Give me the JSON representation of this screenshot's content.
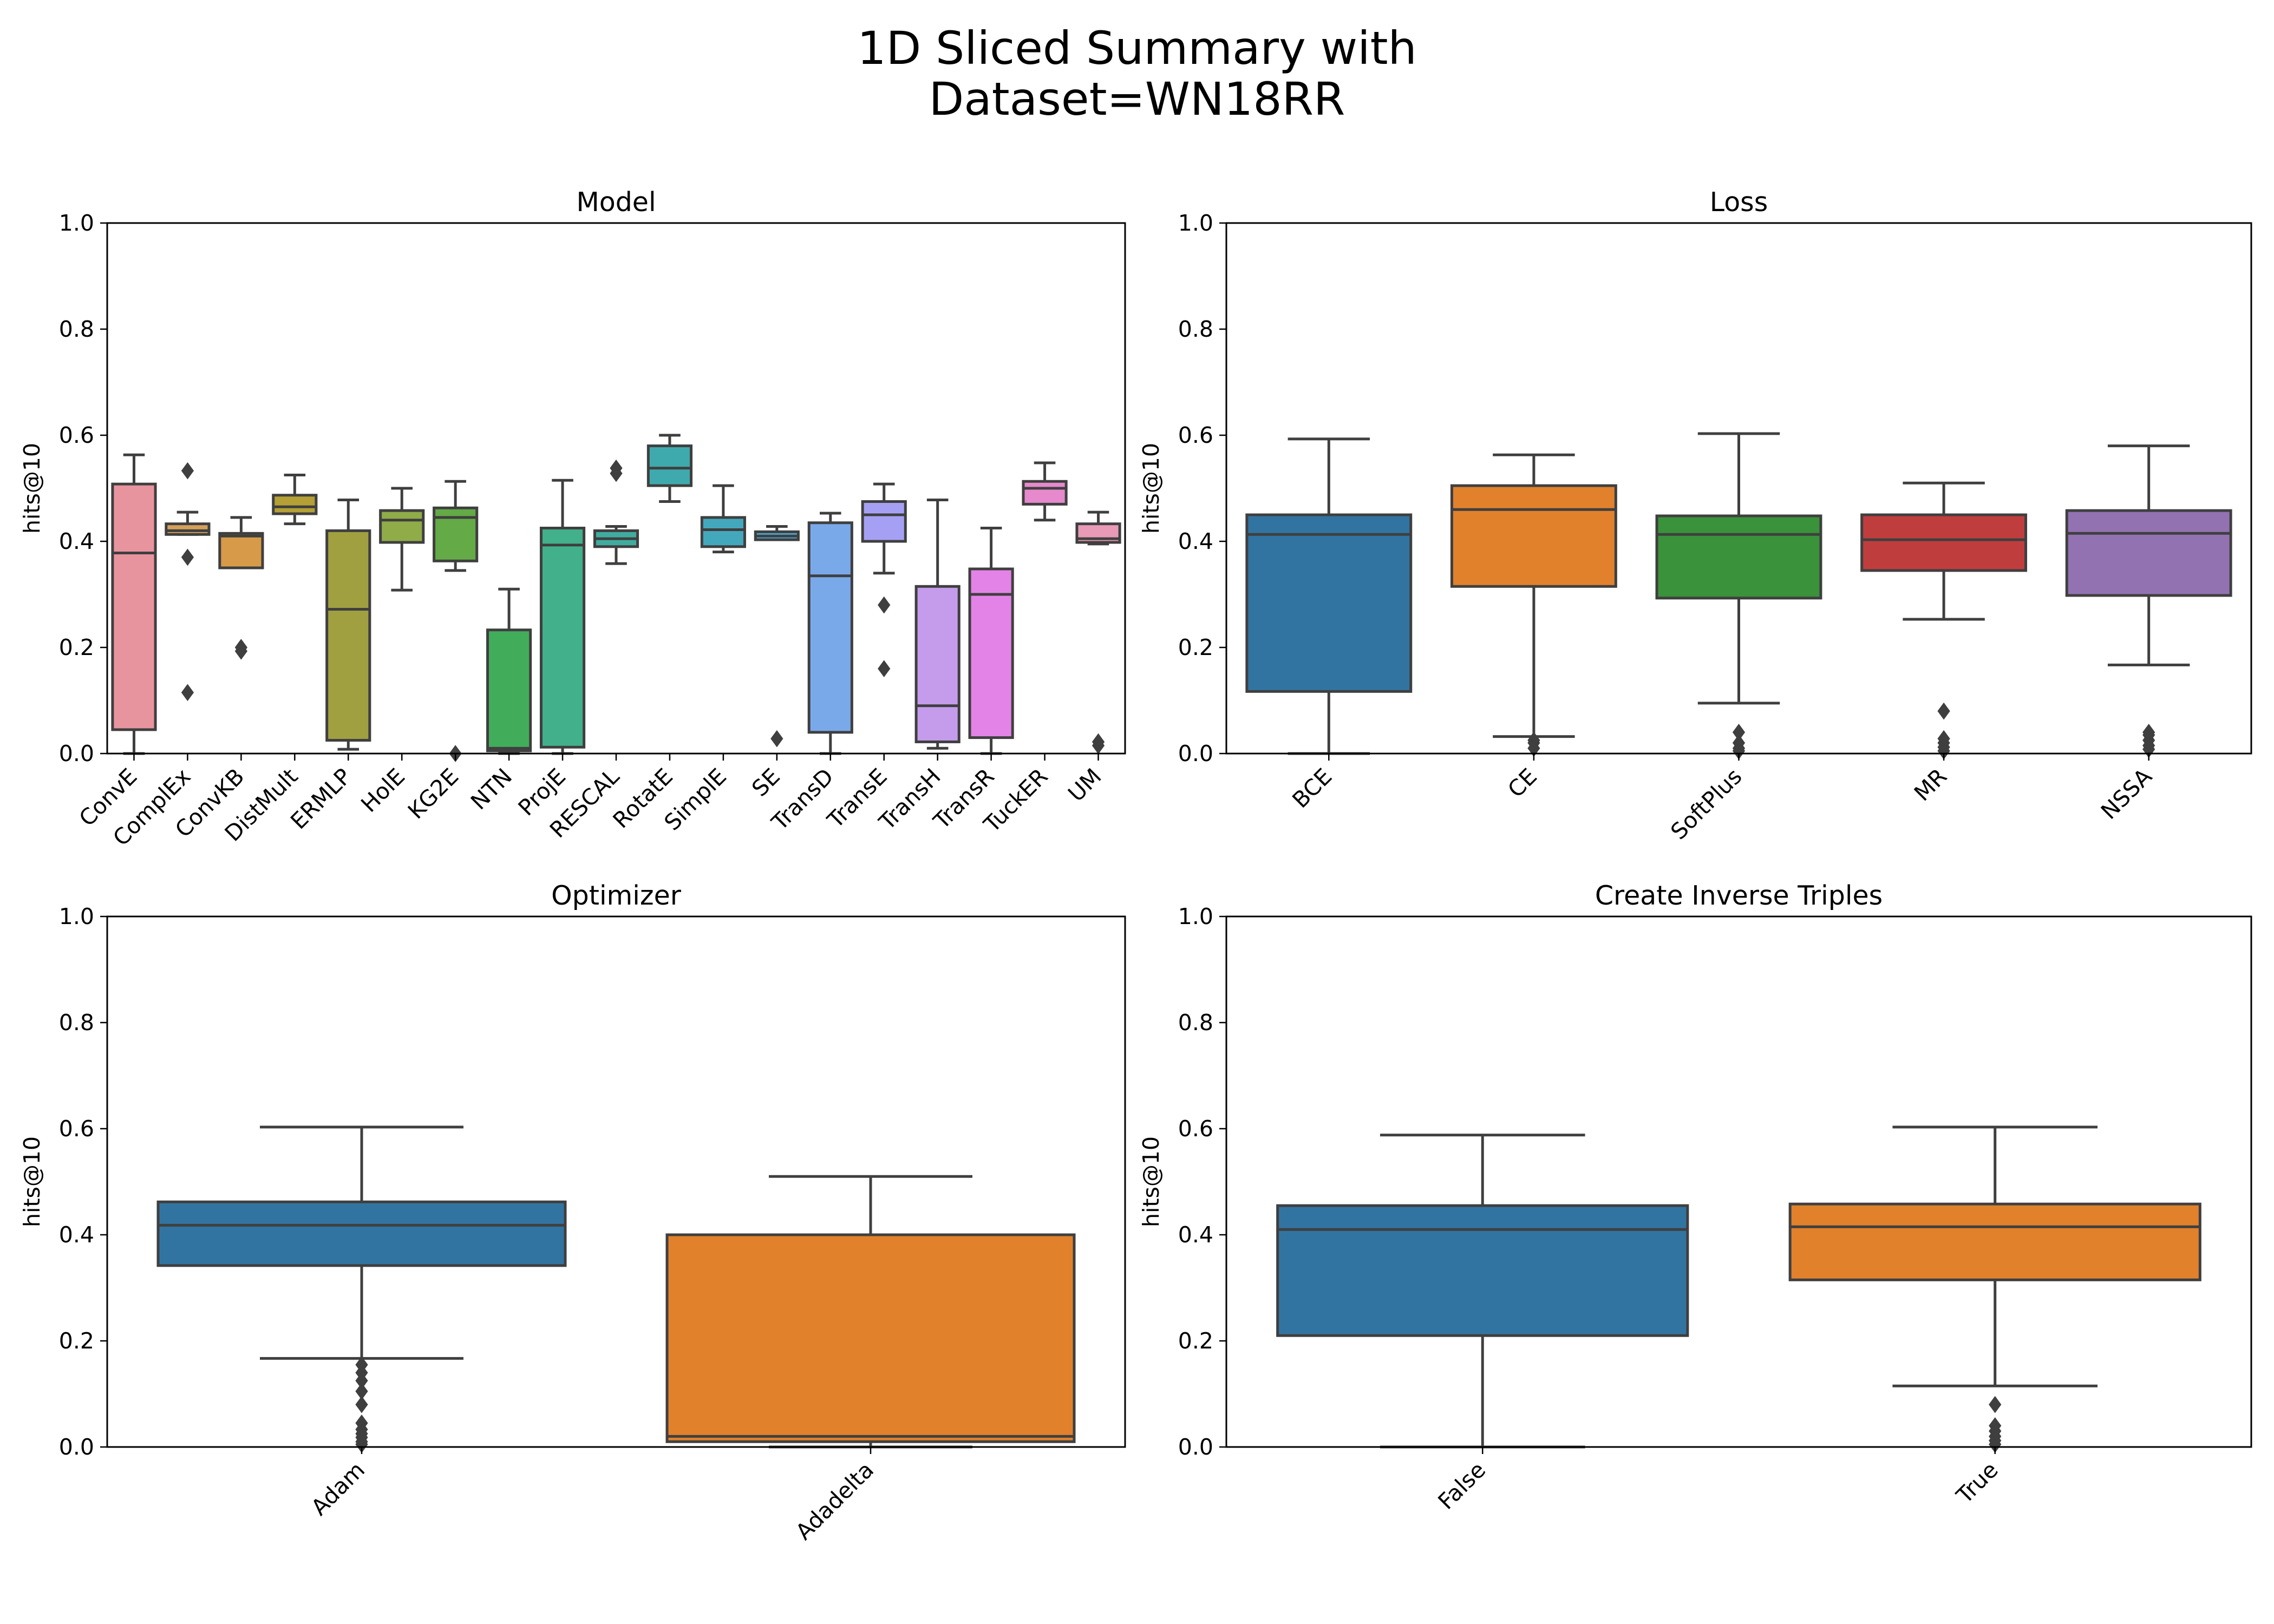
{
  "title_line1": "1D Sliced Summary with",
  "title_line2": "Dataset=WN18RR",
  "chart_data": [
    {
      "type": "box",
      "title": "Model",
      "ylabel": "hits@10",
      "ylim": [
        0,
        1
      ],
      "yticks": [
        "0.0",
        "0.2",
        "0.4",
        "0.6",
        "0.8",
        "1.0"
      ],
      "categories": [
        "ConvE",
        "ComplEx",
        "ConvKB",
        "DistMult",
        "ERMLP",
        "HolE",
        "KG2E",
        "NTN",
        "ProjE",
        "RESCAL",
        "RotatE",
        "SimplE",
        "SE",
        "TransD",
        "TransE",
        "TransH",
        "TransR",
        "TuckER",
        "UM"
      ],
      "colors": [
        "#e8949f",
        "#d6a05b",
        "#d79a48",
        "#b4a035",
        "#a0a040",
        "#8fac48",
        "#64aa46",
        "#41ad5b",
        "#42b08a",
        "#40ac9f",
        "#3faaad",
        "#44a8bd",
        "#4aa6cf",
        "#7aa9ea",
        "#a6a0f4",
        "#c59ceb",
        "#e383e7",
        "#e689cd",
        "#e99ab7"
      ],
      "boxes": [
        {
          "whislo": 0.0,
          "q1": 0.045,
          "med": 0.378,
          "q3": 0.508,
          "whishi": 0.563,
          "fliers": []
        },
        {
          "whislo": 0.413,
          "q1": 0.413,
          "med": 0.42,
          "q3": 0.433,
          "whishi": 0.455,
          "fliers": [
            0.115,
            0.37,
            0.533
          ]
        },
        {
          "whislo": 0.35,
          "q1": 0.35,
          "med": 0.41,
          "q3": 0.415,
          "whishi": 0.445,
          "fliers": [
            0.193,
            0.2
          ]
        },
        {
          "whislo": 0.433,
          "q1": 0.452,
          "med": 0.465,
          "q3": 0.487,
          "whishi": 0.525,
          "fliers": []
        },
        {
          "whislo": 0.008,
          "q1": 0.025,
          "med": 0.272,
          "q3": 0.42,
          "whishi": 0.478,
          "fliers": []
        },
        {
          "whislo": 0.308,
          "q1": 0.398,
          "med": 0.44,
          "q3": 0.458,
          "whishi": 0.5,
          "fliers": []
        },
        {
          "whislo": 0.345,
          "q1": 0.363,
          "med": 0.445,
          "q3": 0.463,
          "whishi": 0.513,
          "fliers": [
            0.0
          ]
        },
        {
          "whislo": 0.0,
          "q1": 0.005,
          "med": 0.01,
          "q3": 0.233,
          "whishi": 0.31,
          "fliers": []
        },
        {
          "whislo": 0.0,
          "q1": 0.012,
          "med": 0.393,
          "q3": 0.425,
          "whishi": 0.515,
          "fliers": []
        },
        {
          "whislo": 0.358,
          "q1": 0.39,
          "med": 0.405,
          "q3": 0.42,
          "whishi": 0.428,
          "fliers": [
            0.528,
            0.538
          ]
        },
        {
          "whislo": 0.475,
          "q1": 0.505,
          "med": 0.538,
          "q3": 0.58,
          "whishi": 0.6,
          "fliers": []
        },
        {
          "whislo": 0.38,
          "q1": 0.39,
          "med": 0.422,
          "q3": 0.445,
          "whishi": 0.505,
          "fliers": []
        },
        {
          "whislo": 0.403,
          "q1": 0.403,
          "med": 0.41,
          "q3": 0.418,
          "whishi": 0.428,
          "fliers": [
            0.028
          ]
        },
        {
          "whislo": 0.0,
          "q1": 0.04,
          "med": 0.335,
          "q3": 0.435,
          "whishi": 0.453,
          "fliers": []
        },
        {
          "whislo": 0.34,
          "q1": 0.4,
          "med": 0.45,
          "q3": 0.475,
          "whishi": 0.508,
          "fliers": [
            0.16,
            0.28
          ]
        },
        {
          "whislo": 0.01,
          "q1": 0.022,
          "med": 0.09,
          "q3": 0.315,
          "whishi": 0.478,
          "fliers": []
        },
        {
          "whislo": 0.0,
          "q1": 0.03,
          "med": 0.3,
          "q3": 0.348,
          "whishi": 0.425,
          "fliers": []
        },
        {
          "whislo": 0.44,
          "q1": 0.47,
          "med": 0.5,
          "q3": 0.513,
          "whishi": 0.548,
          "fliers": []
        },
        {
          "whislo": 0.395,
          "q1": 0.398,
          "med": 0.405,
          "q3": 0.433,
          "whishi": 0.455,
          "fliers": [
            0.015,
            0.022
          ]
        }
      ]
    },
    {
      "type": "box",
      "title": "Loss",
      "ylabel": "hits@10",
      "ylim": [
        0,
        1
      ],
      "yticks": [
        "0.0",
        "0.2",
        "0.4",
        "0.6",
        "0.8",
        "1.0"
      ],
      "categories": [
        "BCE",
        "CE",
        "SoftPlus",
        "MR",
        "NSSA"
      ],
      "colors": [
        "#3274a1",
        "#e1812c",
        "#3a923a",
        "#c03d3e",
        "#9372b2"
      ],
      "boxes": [
        {
          "whislo": 0.0,
          "q1": 0.117,
          "med": 0.413,
          "q3": 0.45,
          "whishi": 0.593,
          "fliers": []
        },
        {
          "whislo": 0.032,
          "q1": 0.315,
          "med": 0.46,
          "q3": 0.505,
          "whishi": 0.563,
          "fliers": [
            0.01,
            0.02,
            0.025
          ]
        },
        {
          "whislo": 0.095,
          "q1": 0.293,
          "med": 0.413,
          "q3": 0.448,
          "whishi": 0.603,
          "fliers": [
            0.005,
            0.01,
            0.02,
            0.04
          ]
        },
        {
          "whislo": 0.253,
          "q1": 0.345,
          "med": 0.403,
          "q3": 0.45,
          "whishi": 0.51,
          "fliers": [
            0.005,
            0.012,
            0.02,
            0.028,
            0.08
          ]
        },
        {
          "whislo": 0.167,
          "q1": 0.298,
          "med": 0.415,
          "q3": 0.458,
          "whishi": 0.58,
          "fliers": [
            0.008,
            0.015,
            0.025,
            0.035,
            0.04
          ]
        }
      ]
    },
    {
      "type": "box",
      "title": "Optimizer",
      "ylabel": "hits@10",
      "ylim": [
        0,
        1
      ],
      "yticks": [
        "0.0",
        "0.2",
        "0.4",
        "0.6",
        "0.8",
        "1.0"
      ],
      "categories": [
        "Adam",
        "Adadelta"
      ],
      "colors": [
        "#3274a1",
        "#e1812c"
      ],
      "boxes": [
        {
          "whislo": 0.167,
          "q1": 0.342,
          "med": 0.418,
          "q3": 0.462,
          "whishi": 0.603,
          "fliers": [
            0.005,
            0.01,
            0.018,
            0.025,
            0.033,
            0.045,
            0.08,
            0.105,
            0.125,
            0.14,
            0.155
          ]
        },
        {
          "whislo": 0.0,
          "q1": 0.01,
          "med": 0.02,
          "q3": 0.4,
          "whishi": 0.51,
          "fliers": []
        }
      ]
    },
    {
      "type": "box",
      "title": "Create Inverse Triples",
      "ylabel": "hits@10",
      "ylim": [
        0,
        1
      ],
      "yticks": [
        "0.0",
        "0.2",
        "0.4",
        "0.6",
        "0.8",
        "1.0"
      ],
      "categories": [
        "False",
        "True"
      ],
      "colors": [
        "#3274a1",
        "#e1812c"
      ],
      "boxes": [
        {
          "whislo": 0.0,
          "q1": 0.21,
          "med": 0.41,
          "q3": 0.455,
          "whishi": 0.588,
          "fliers": []
        },
        {
          "whislo": 0.115,
          "q1": 0.315,
          "med": 0.415,
          "q3": 0.458,
          "whishi": 0.603,
          "fliers": [
            0.005,
            0.012,
            0.02,
            0.03,
            0.04,
            0.08
          ]
        }
      ]
    }
  ]
}
